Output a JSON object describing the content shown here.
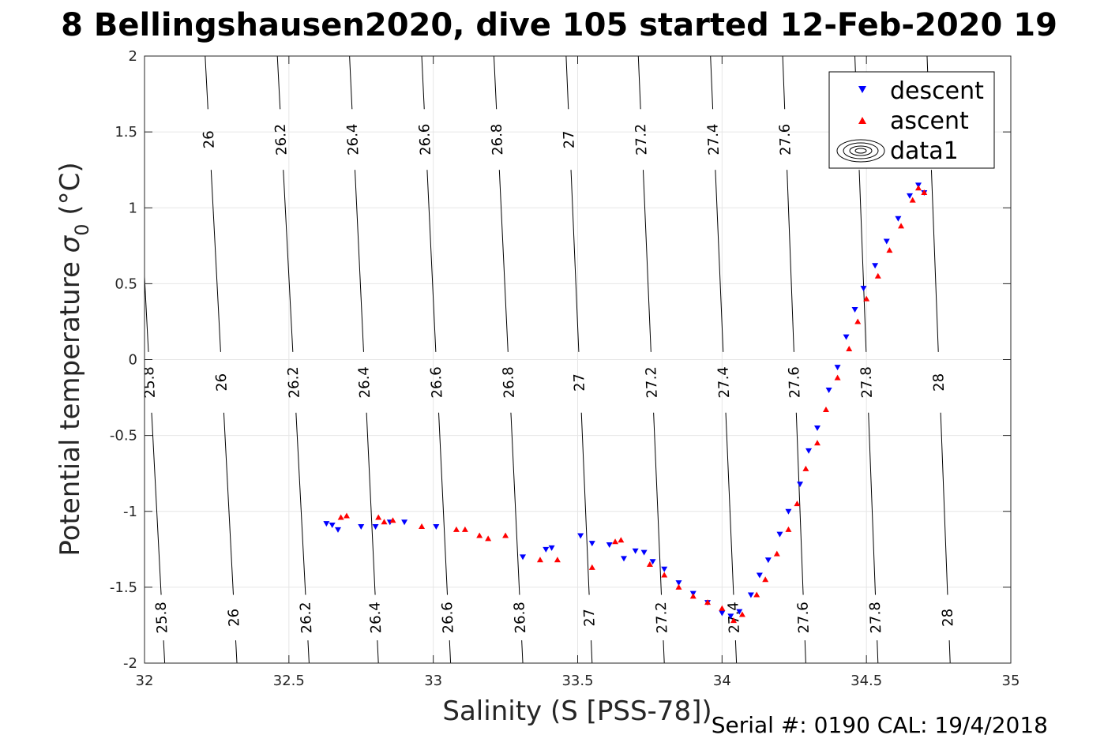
{
  "title": "8 Bellingshausen2020, dive 105 started 12-Feb-2020 19",
  "footer": "Serial #: 0190  CAL: 19/4/2018",
  "colors": {
    "descent": "#0000ff",
    "ascent": "#ff0000",
    "grid": "#e6e6e6",
    "contour": "#000000"
  },
  "chart_data": {
    "type": "scatter",
    "xlabel": "Salinity (S [PSS-78])",
    "ylabel": "Potential temperature σ 0 (°C)",
    "ylabel_main": "Potential temperature ",
    "ylabel_sym": "σ",
    "ylabel_sub": "0",
    "ylabel_unit": " (°C)",
    "xlim": [
      32,
      35
    ],
    "ylim": [
      -2,
      2
    ],
    "grid": true,
    "legend_position": "top-right",
    "xticks": [
      "32",
      "32.5",
      "33",
      "33.5",
      "34",
      "34.5",
      "35"
    ],
    "xtick_values": [
      32,
      32.5,
      33,
      33.5,
      34,
      34.5,
      35
    ],
    "yticks": [
      "2",
      "1.5",
      "1",
      "0.5",
      "0",
      "-0.5",
      "-1",
      "-1.5",
      "-2"
    ],
    "ytick_values": [
      2,
      1.5,
      1,
      0.5,
      0,
      -0.5,
      -1,
      -1.5,
      -2
    ],
    "legend": [
      "descent",
      "ascent",
      "data1"
    ],
    "contours": [
      {
        "level": "25.8",
        "s_at_top": 31.96,
        "s_at_bottom": 32.07
      },
      {
        "level": "26",
        "s_at_top": 32.21,
        "s_at_bottom": 32.32
      },
      {
        "level": "26.2",
        "s_at_top": 32.46,
        "s_at_bottom": 32.57
      },
      {
        "level": "26.4",
        "s_at_top": 32.71,
        "s_at_bottom": 32.81
      },
      {
        "level": "26.6",
        "s_at_top": 32.96,
        "s_at_bottom": 33.06
      },
      {
        "level": "26.8",
        "s_at_top": 33.21,
        "s_at_bottom": 33.31
      },
      {
        "level": "27",
        "s_at_top": 33.46,
        "s_at_bottom": 33.55
      },
      {
        "level": "27.2",
        "s_at_top": 33.71,
        "s_at_bottom": 33.8
      },
      {
        "level": "27.4",
        "s_at_top": 33.96,
        "s_at_bottom": 34.05
      },
      {
        "level": "27.6",
        "s_at_top": 34.21,
        "s_at_bottom": 34.29
      },
      {
        "level": "27.8",
        "s_at_top": 34.46,
        "s_at_bottom": 34.54
      },
      {
        "level": "28",
        "s_at_top": 34.71,
        "s_at_bottom": 34.79
      }
    ],
    "contour_label_temps": [
      1.45,
      -0.15,
      -1.7
    ],
    "series": [
      {
        "name": "descent",
        "marker": "triangle-down",
        "points": [
          [
            32.63,
            -1.08
          ],
          [
            32.65,
            -1.09
          ],
          [
            32.67,
            -1.12
          ],
          [
            32.75,
            -1.1
          ],
          [
            32.8,
            -1.1
          ],
          [
            32.85,
            -1.07
          ],
          [
            32.9,
            -1.07
          ],
          [
            33.01,
            -1.1
          ],
          [
            33.31,
            -1.3
          ],
          [
            33.39,
            -1.25
          ],
          [
            33.41,
            -1.24
          ],
          [
            33.51,
            -1.16
          ],
          [
            33.55,
            -1.21
          ],
          [
            33.61,
            -1.22
          ],
          [
            33.66,
            -1.31
          ],
          [
            33.7,
            -1.26
          ],
          [
            33.73,
            -1.27
          ],
          [
            33.76,
            -1.33
          ],
          [
            33.8,
            -1.38
          ],
          [
            33.85,
            -1.47
          ],
          [
            33.9,
            -1.54
          ],
          [
            33.95,
            -1.6
          ],
          [
            34.0,
            -1.67
          ],
          [
            34.03,
            -1.69
          ],
          [
            34.06,
            -1.66
          ],
          [
            34.1,
            -1.55
          ],
          [
            34.13,
            -1.42
          ],
          [
            34.16,
            -1.32
          ],
          [
            34.2,
            -1.15
          ],
          [
            34.23,
            -1.0
          ],
          [
            34.27,
            -0.82
          ],
          [
            34.3,
            -0.6
          ],
          [
            34.33,
            -0.45
          ],
          [
            34.37,
            -0.2
          ],
          [
            34.4,
            -0.05
          ],
          [
            34.43,
            0.15
          ],
          [
            34.46,
            0.33
          ],
          [
            34.49,
            0.47
          ],
          [
            34.53,
            0.62
          ],
          [
            34.57,
            0.78
          ],
          [
            34.61,
            0.93
          ],
          [
            34.65,
            1.08
          ],
          [
            34.68,
            1.15
          ],
          [
            34.7,
            1.1
          ]
        ]
      },
      {
        "name": "ascent",
        "marker": "triangle-up",
        "points": [
          [
            32.68,
            -1.04
          ],
          [
            32.7,
            -1.03
          ],
          [
            32.81,
            -1.04
          ],
          [
            32.83,
            -1.07
          ],
          [
            32.86,
            -1.06
          ],
          [
            32.96,
            -1.1
          ],
          [
            33.08,
            -1.12
          ],
          [
            33.11,
            -1.12
          ],
          [
            33.16,
            -1.16
          ],
          [
            33.19,
            -1.18
          ],
          [
            33.25,
            -1.16
          ],
          [
            33.37,
            -1.32
          ],
          [
            33.43,
            -1.32
          ],
          [
            33.55,
            -1.37
          ],
          [
            33.63,
            -1.2
          ],
          [
            33.65,
            -1.19
          ],
          [
            33.75,
            -1.35
          ],
          [
            33.8,
            -1.42
          ],
          [
            33.85,
            -1.5
          ],
          [
            33.9,
            -1.56
          ],
          [
            33.95,
            -1.6
          ],
          [
            34.0,
            -1.64
          ],
          [
            34.04,
            -1.72
          ],
          [
            34.07,
            -1.68
          ],
          [
            34.12,
            -1.55
          ],
          [
            34.15,
            -1.45
          ],
          [
            34.19,
            -1.28
          ],
          [
            34.23,
            -1.12
          ],
          [
            34.26,
            -0.95
          ],
          [
            34.29,
            -0.72
          ],
          [
            34.33,
            -0.55
          ],
          [
            34.36,
            -0.33
          ],
          [
            34.4,
            -0.12
          ],
          [
            34.44,
            0.07
          ],
          [
            34.47,
            0.25
          ],
          [
            34.5,
            0.4
          ],
          [
            34.54,
            0.55
          ],
          [
            34.58,
            0.72
          ],
          [
            34.62,
            0.88
          ],
          [
            34.66,
            1.05
          ],
          [
            34.68,
            1.13
          ],
          [
            34.7,
            1.1
          ]
        ]
      }
    ]
  }
}
